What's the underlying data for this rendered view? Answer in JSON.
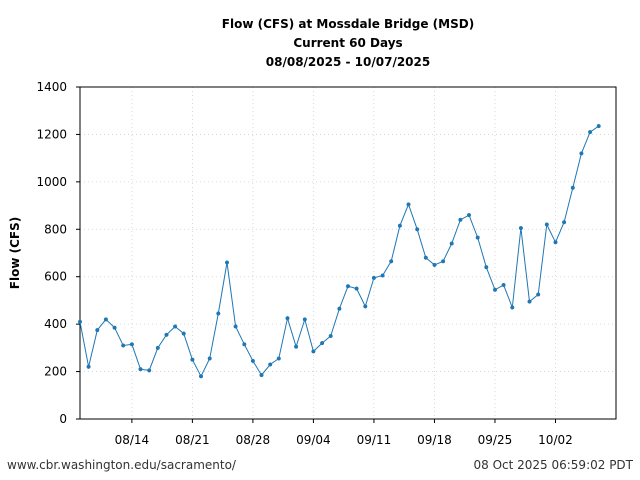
{
  "chart_data": {
    "type": "line",
    "title": [
      "Flow (CFS) at Mossdale Bridge (MSD)",
      "Current 60 Days",
      "08/08/2025 - 10/07/2025"
    ],
    "ylabel": "Flow (CFS)",
    "xlabel": "",
    "ylim": [
      0,
      1400
    ],
    "yticks": [
      0,
      200,
      400,
      600,
      800,
      1000,
      1200,
      1400
    ],
    "xlim": [
      "2025-08-08",
      "2025-10-09"
    ],
    "xticks": [
      {
        "date": "2025-08-14",
        "label": "08/14"
      },
      {
        "date": "2025-08-21",
        "label": "08/21"
      },
      {
        "date": "2025-08-28",
        "label": "08/28"
      },
      {
        "date": "2025-09-04",
        "label": "09/04"
      },
      {
        "date": "2025-09-11",
        "label": "09/11"
      },
      {
        "date": "2025-09-18",
        "label": "09/18"
      },
      {
        "date": "2025-09-25",
        "label": "09/25"
      },
      {
        "date": "2025-10-02",
        "label": "10/02"
      }
    ],
    "grid": true,
    "line_color": "#1f77b4",
    "series": [
      {
        "x": [
          "2025-08-08",
          "2025-08-09",
          "2025-08-10",
          "2025-08-11",
          "2025-08-12",
          "2025-08-13",
          "2025-08-14",
          "2025-08-15",
          "2025-08-16",
          "2025-08-17",
          "2025-08-18",
          "2025-08-19",
          "2025-08-20",
          "2025-08-21",
          "2025-08-22",
          "2025-08-23",
          "2025-08-24",
          "2025-08-25",
          "2025-08-26",
          "2025-08-27",
          "2025-08-28",
          "2025-08-29",
          "2025-08-30",
          "2025-08-31",
          "2025-09-01",
          "2025-09-02",
          "2025-09-03",
          "2025-09-04",
          "2025-09-05",
          "2025-09-06",
          "2025-09-07",
          "2025-09-08",
          "2025-09-09",
          "2025-09-10",
          "2025-09-11",
          "2025-09-12",
          "2025-09-13",
          "2025-09-14",
          "2025-09-15",
          "2025-09-16",
          "2025-09-17",
          "2025-09-18",
          "2025-09-19",
          "2025-09-20",
          "2025-09-21",
          "2025-09-22",
          "2025-09-23",
          "2025-09-24",
          "2025-09-25",
          "2025-09-26",
          "2025-09-27",
          "2025-09-28",
          "2025-09-29",
          "2025-09-30",
          "2025-10-01",
          "2025-10-02",
          "2025-10-03",
          "2025-10-04",
          "2025-10-05",
          "2025-10-06",
          "2025-10-07"
        ],
        "values": [
          410,
          220,
          375,
          420,
          385,
          310,
          315,
          210,
          205,
          300,
          355,
          390,
          360,
          250,
          180,
          255,
          445,
          660,
          390,
          315,
          245,
          185,
          230,
          255,
          425,
          305,
          420,
          285,
          320,
          350,
          465,
          560,
          550,
          475,
          595,
          605,
          665,
          815,
          905,
          800,
          680,
          650,
          665,
          740,
          840,
          860,
          765,
          640,
          545,
          565,
          470,
          805,
          495,
          525,
          820,
          745,
          830,
          975,
          1120,
          1210,
          1235
        ]
      }
    ]
  },
  "footer": {
    "left": "www.cbr.washington.edu/sacramento/",
    "right": "08 Oct 2025 06:59:02 PDT"
  }
}
